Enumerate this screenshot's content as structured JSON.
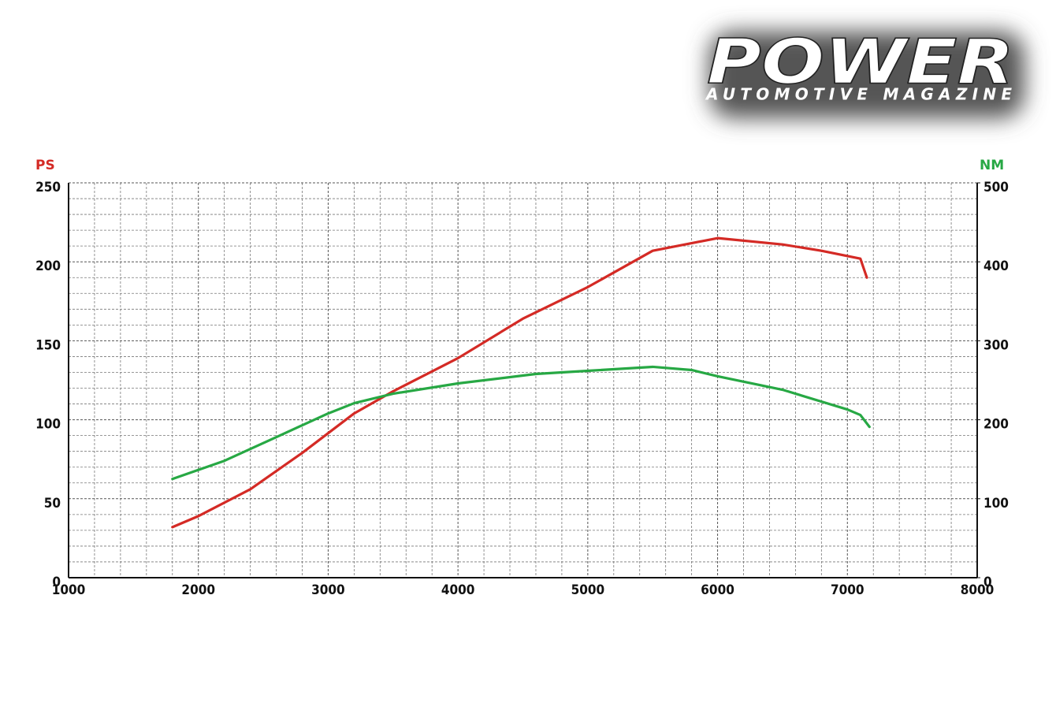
{
  "logo": {
    "title": "POWER",
    "subtitle": "AUTOMOTIVE MAGAZINE"
  },
  "chart_data": {
    "type": "line",
    "ylabel": "PS",
    "y2label": "NM",
    "xlim": [
      1000,
      8000
    ],
    "xticks": [
      1000,
      2000,
      3000,
      4000,
      5000,
      6000,
      7000,
      8000
    ],
    "ylim": [
      0,
      250
    ],
    "yticks": [
      0,
      50,
      100,
      150,
      200,
      250
    ],
    "y2lim": [
      0,
      500
    ],
    "y2ticks": [
      0,
      100,
      200,
      300,
      400,
      500
    ],
    "grid": true,
    "series": [
      {
        "name": "PS",
        "color": "#d42a25",
        "x": [
          1800,
          2000,
          2400,
          2800,
          3200,
          3500,
          4000,
          4500,
          5000,
          5500,
          6000,
          6500,
          6800,
          7100,
          7150
        ],
        "values": [
          32,
          39,
          56,
          79,
          104,
          118,
          139,
          164,
          184,
          207,
          215,
          211,
          207,
          202,
          190
        ]
      },
      {
        "name": "NM",
        "color": "#27a844",
        "axis": "y2",
        "x": [
          1800,
          2200,
          2600,
          3000,
          3200,
          3500,
          4000,
          4600,
          5000,
          5500,
          5800,
          6000,
          6500,
          7000,
          7100,
          7170
        ],
        "values": [
          125,
          148,
          178,
          208,
          221,
          233,
          246,
          258,
          262,
          267,
          263,
          255,
          238,
          213,
          206,
          191
        ]
      }
    ]
  }
}
